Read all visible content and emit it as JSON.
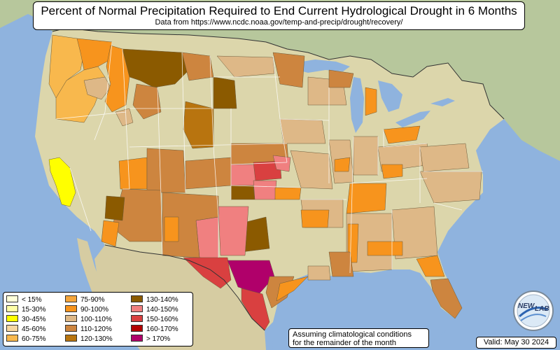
{
  "header": {
    "title": "Percent of Normal Precipitation Required to End Current Hydrological Drought in 6 Months",
    "subtitle": "Data from https://www.ncdc.noaa.gov/temp-and-precip/drought/recovery/"
  },
  "legend": {
    "items": [
      {
        "label": "< 15%",
        "color": "#ffffd9"
      },
      {
        "label": "15-30%",
        "color": "#ffffa8"
      },
      {
        "label": "30-45%",
        "color": "#ffff00"
      },
      {
        "label": "45-60%",
        "color": "#f7d7a0"
      },
      {
        "label": "60-75%",
        "color": "#f8b84d"
      },
      {
        "label": "75-90%",
        "color": "#f5a63c"
      },
      {
        "label": "90-100%",
        "color": "#f7941d"
      },
      {
        "label": "100-110%",
        "color": "#deb887"
      },
      {
        "label": "110-120%",
        "color": "#cd853f"
      },
      {
        "label": "120-130%",
        "color": "#b8740f"
      },
      {
        "label": "130-140%",
        "color": "#8b5a00"
      },
      {
        "label": "140-150%",
        "color": "#f08080"
      },
      {
        "label": "150-160%",
        "color": "#d94040"
      },
      {
        "label": "160-170%",
        "color": "#b30000"
      },
      {
        "label": "> 170%",
        "color": "#b0006a"
      }
    ]
  },
  "note": {
    "line1": "Assuming climatological conditions",
    "line2": "for the remainder of the month"
  },
  "valid": "Valid: May 30 2024",
  "logo": {
    "top": "NEW",
    "bottom": "LAB"
  },
  "colors": {
    "ocean": "#8fb3de",
    "land": "#d8d3a8",
    "canada": "#b9c9a0",
    "mexico": "#d9cfa6"
  }
}
